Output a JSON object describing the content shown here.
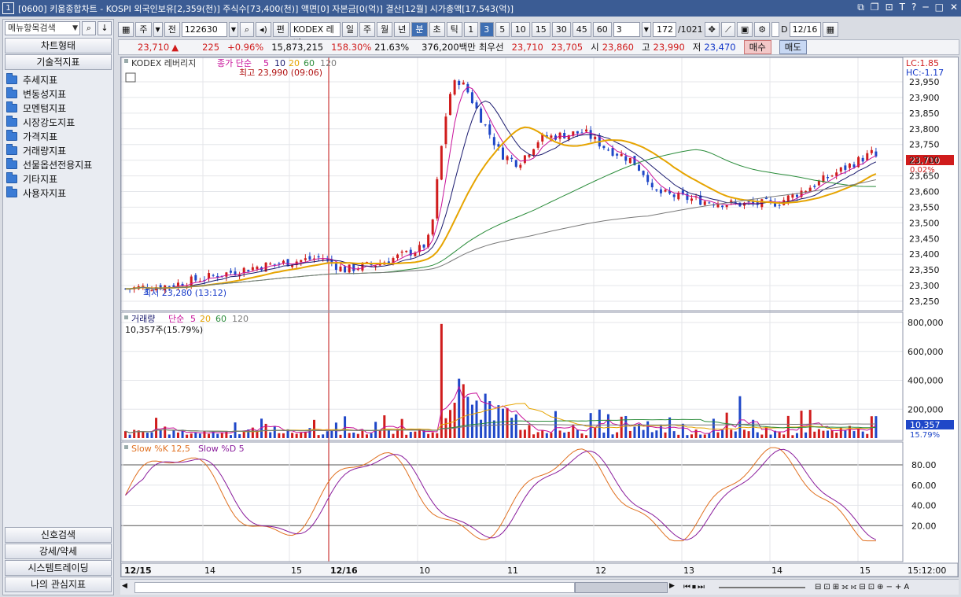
{
  "window": {
    "app_number": "1",
    "title": "[0600] 키움종합차트 - KOSPI 외국인보유[2,359(천)] 주식수[73,400(천)] 액면[0] 자본금[0(억)] 결산[12월] 시가총액[17,543(억)]",
    "buttons": [
      "⧉",
      "❐",
      "⊡",
      "T",
      "?",
      "─",
      "□",
      "✕"
    ]
  },
  "sidebar": {
    "search_placeholder": "메뉴항목검색",
    "header_chart_type": "차트형태",
    "header_tech": "기술적지표",
    "tree_items": [
      "추세지표",
      "변동성지표",
      "모멘텀지표",
      "시장강도지표",
      "가격지표",
      "거래량지표",
      "선물옵션전용지표",
      "기타지표",
      "사용자지표"
    ],
    "bottom_buttons": [
      "신호검색",
      "강세/약세",
      "시스템트레이딩",
      "나의 관심지표"
    ]
  },
  "toolbar": {
    "period_label": "주",
    "jeon": "전",
    "code": "122630",
    "pyeon": "편",
    "name": "KODEX 레버",
    "periods": [
      "일",
      "주",
      "월",
      "년",
      "분",
      "초",
      "틱"
    ],
    "active_period": "분",
    "minute_options": [
      "1",
      "3",
      "5",
      "10",
      "15",
      "30",
      "45",
      "60"
    ],
    "active_minute": "3",
    "count_value": "3",
    "bars_shown": "172",
    "bars_total": "/1021",
    "date_checkbox_label": "D",
    "date_value": "12/16"
  },
  "quote": {
    "price": "23,710",
    "change_arrow": "▲",
    "change": "225",
    "change_pct": "+0.96%",
    "volume": "15,873,215",
    "vol_ratio": "158.30%",
    "turnover": "21.63%",
    "amount": "376,200백만",
    "best_label": "최우선",
    "best_ask": "23,710",
    "best_bid": "23,705",
    "open_label": "시",
    "open": "23,860",
    "high_label": "고",
    "high": "23,990",
    "low_label": "저",
    "low": "23,470",
    "buy_label": "매수",
    "sell_label": "매도"
  },
  "price_panel": {
    "name_label": "KODEX 레버리지",
    "ma_label": "종가 단순",
    "ma_periods": [
      "5",
      "10",
      "20",
      "60",
      "120"
    ],
    "ma_colors": [
      "#c8119a",
      "#1a1a6e",
      "#e6a400",
      "#2a8c3a",
      "#7a7a7a"
    ],
    "high_marker": "최고 23,990 (09:06)",
    "low_marker": "최저 23,280 (13:12)",
    "lc": "LC:1.85",
    "hc": "HC:-1.17",
    "current_price_tag": "23,710",
    "current_pct_tag": "0.02%",
    "y_ticks": [
      "23,950",
      "23,900",
      "23,850",
      "23,800",
      "23,750",
      "23,700",
      "23,650",
      "23,600",
      "23,550",
      "23,500",
      "23,450",
      "23,400",
      "23,350",
      "23,300",
      "23,250"
    ]
  },
  "volume_panel": {
    "label": "거래량",
    "ma_label": "단순",
    "ma_periods": [
      "5",
      "20",
      "60",
      "120"
    ],
    "current_text": "10,357주(15.79%)",
    "y_ticks": [
      "800,000",
      "600,000",
      "400,000",
      "200,000"
    ],
    "current_tag": "10,357",
    "current_pct_tag": "15.79%"
  },
  "stoch_panel": {
    "k_label": "Slow %K 12,5",
    "d_label": "Slow %D 5",
    "y_ticks": [
      "80.00",
      "60.00",
      "40.00",
      "20.00"
    ]
  },
  "x_axis": {
    "labels": [
      "12/15",
      "14",
      "15",
      "12/16",
      "10",
      "11",
      "12",
      "13",
      "14",
      "15"
    ],
    "time": "15:12:00"
  },
  "colors": {
    "up": "#d01c1c",
    "down": "#1f47c8",
    "titlebar": "#3b5c94"
  }
}
